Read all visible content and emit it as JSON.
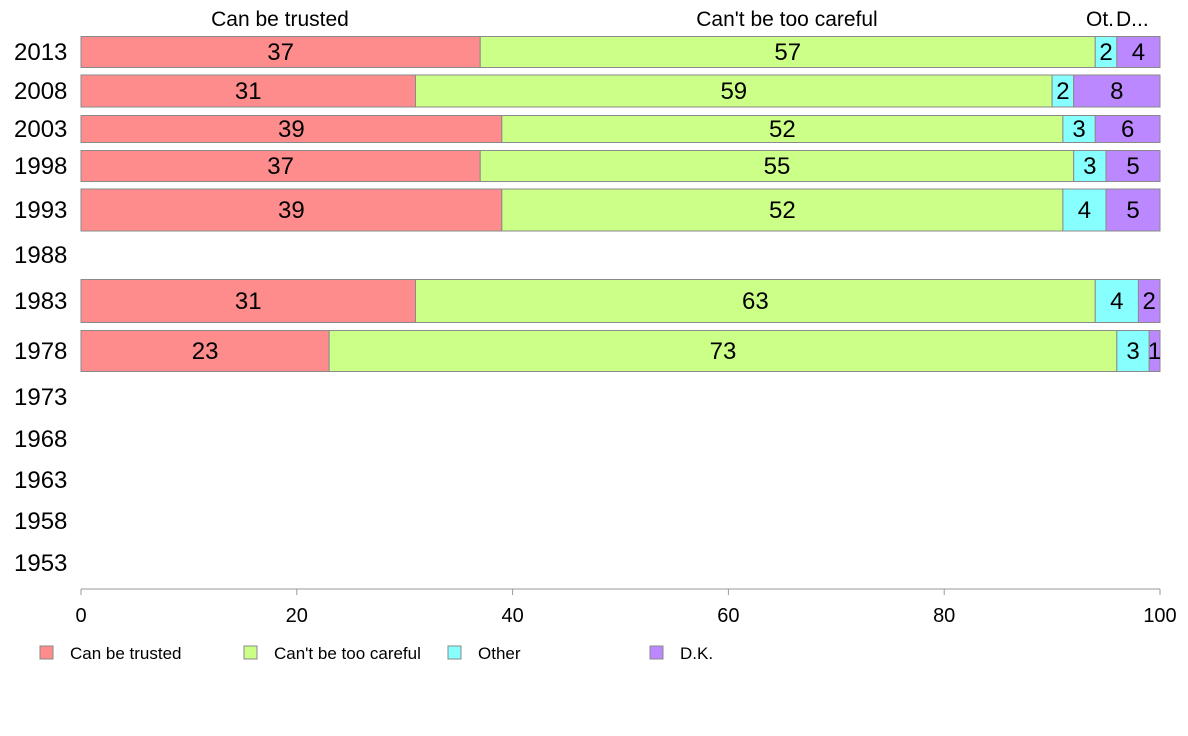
{
  "chart_data": {
    "type": "bar",
    "orientation": "horizontal",
    "stacked": true,
    "categories": [
      "2013",
      "2008",
      "2003",
      "1998",
      "1993",
      "1988",
      "1983",
      "1978",
      "1973",
      "1968",
      "1963",
      "1958",
      "1953"
    ],
    "series": [
      {
        "name": "Can be trusted",
        "color": "#ff8c8c",
        "values": [
          37,
          31,
          39,
          37,
          39,
          null,
          31,
          23,
          null,
          null,
          null,
          null,
          null
        ]
      },
      {
        "name": "Can't be too careful",
        "color": "#ccff88",
        "values": [
          57,
          59,
          52,
          55,
          52,
          null,
          63,
          73,
          null,
          null,
          null,
          null,
          null
        ]
      },
      {
        "name": "Other",
        "color": "#88ffff",
        "values": [
          2,
          2,
          3,
          3,
          4,
          null,
          4,
          3,
          null,
          null,
          null,
          null,
          null
        ]
      },
      {
        "name": "D.K.",
        "color": "#bb88ff",
        "values": [
          4,
          8,
          6,
          5,
          5,
          null,
          2,
          1,
          null,
          null,
          null,
          null,
          null
        ]
      }
    ],
    "top_labels": [
      "Can be trusted",
      "Can't be too careful",
      "Ot.",
      "D..."
    ],
    "xlim": [
      0,
      100
    ],
    "xticks": [
      0,
      20,
      40,
      60,
      80,
      100
    ],
    "xlabel": "",
    "ylabel": "",
    "grid": false,
    "legend_position": "bottom"
  }
}
